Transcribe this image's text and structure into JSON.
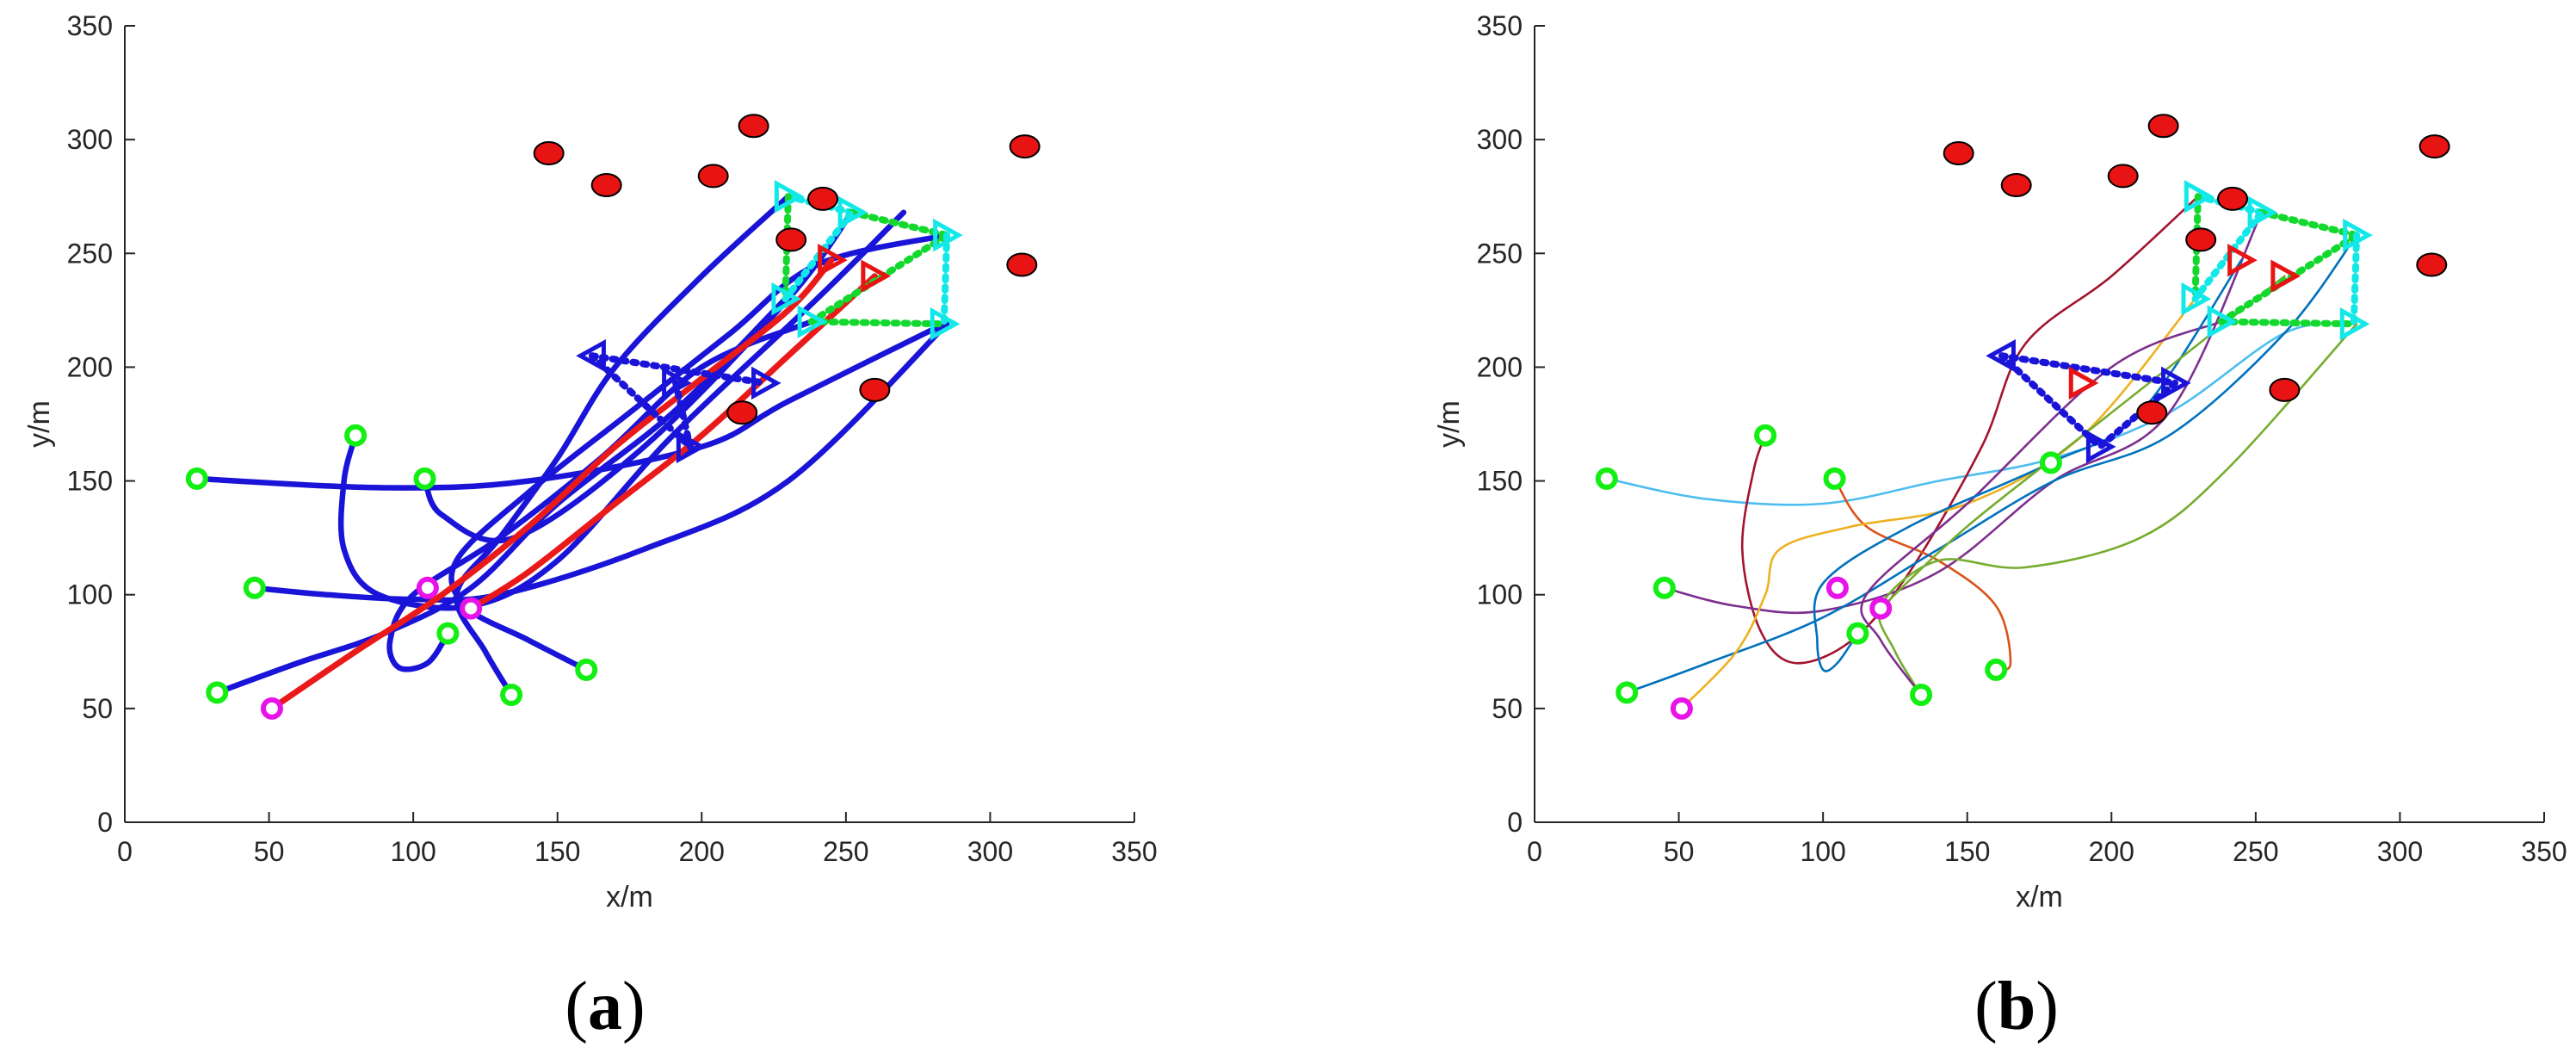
{
  "figure": {
    "panels": [
      {
        "label_open": "(",
        "label_letter": "a",
        "label_close": ")"
      },
      {
        "label_open": "(",
        "label_letter": "b",
        "label_close": ")"
      }
    ]
  },
  "chart_data": [
    {
      "type": "line",
      "panel": "a",
      "xlabel": "x/m",
      "ylabel": "y/m",
      "xlim": [
        0,
        350
      ],
      "ylim": [
        0,
        350
      ],
      "xticks": [
        0,
        50,
        100,
        150,
        200,
        250,
        300,
        350
      ],
      "yticks": [
        0,
        50,
        100,
        150,
        200,
        250,
        300,
        350
      ],
      "grid": false,
      "colors": {
        "uav_paths": "#1a14d8",
        "highlight_paths": "#ea1a1a",
        "threats": "#e81313",
        "start_green": "#13ee13",
        "start_magenta": "#e813e8",
        "formation_cyan": "#13e8e8",
        "formation_dotted": "#13d82e",
        "formation_blue": "#1a14d8"
      },
      "threats": [
        [
          147,
          294
        ],
        [
          167,
          280
        ],
        [
          204,
          284
        ],
        [
          218,
          306
        ],
        [
          242,
          274
        ],
        [
          312,
          297
        ],
        [
          311,
          245
        ],
        [
          231,
          256
        ],
        [
          214,
          180
        ],
        [
          260,
          190
        ]
      ],
      "starts_green": [
        [
          25,
          151
        ],
        [
          80,
          170
        ],
        [
          104,
          151
        ],
        [
          45,
          103
        ],
        [
          32,
          57
        ],
        [
          134,
          56
        ],
        [
          160,
          67
        ],
        [
          112,
          83
        ]
      ],
      "starts_magenta": [
        [
          51,
          50
        ],
        [
          105,
          103
        ],
        [
          120,
          94
        ]
      ],
      "targets": {
        "cyan": [
          [
            230,
            275
          ],
          [
            252,
            268
          ],
          [
            285,
            258
          ],
          [
            229,
            230
          ],
          [
            238,
            220
          ],
          [
            284,
            219
          ]
        ],
        "red": [
          [
            245,
            247
          ],
          [
            260,
            240
          ]
        ],
        "blue": [
          [
            162,
            205
          ],
          [
            191,
            193
          ],
          [
            222,
            193
          ],
          [
            196,
            165
          ]
        ]
      },
      "series": [
        {
          "role": "uav",
          "points": [
            [
              25,
              151
            ],
            [
              90,
              147
            ],
            [
              140,
              150
            ],
            [
              200,
              165
            ],
            [
              230,
              185
            ],
            [
              284,
              219
            ]
          ]
        },
        {
          "role": "uav",
          "points": [
            [
              80,
              170
            ],
            [
              76,
              150
            ],
            [
              76,
              120
            ],
            [
              88,
              100
            ],
            [
              120,
              95
            ],
            [
              150,
              115
            ],
            [
              190,
              170
            ],
            [
              240,
              230
            ],
            [
              270,
              268
            ]
          ]
        },
        {
          "role": "uav",
          "points": [
            [
              104,
              151
            ],
            [
              110,
              135
            ],
            [
              135,
              125
            ],
            [
              180,
              165
            ],
            [
              230,
              230
            ],
            [
              252,
              268
            ]
          ]
        },
        {
          "role": "uav",
          "points": [
            [
              45,
              103
            ],
            [
              70,
              100
            ],
            [
              100,
              98
            ],
            [
              130,
              100
            ],
            [
              180,
              120
            ],
            [
              230,
              150
            ],
            [
              285,
              219
            ]
          ]
        },
        {
          "role": "uav",
          "points": [
            [
              32,
              57
            ],
            [
              60,
              70
            ],
            [
              90,
              83
            ],
            [
              120,
              103
            ],
            [
              150,
              140
            ],
            [
              190,
              180
            ],
            [
              229,
              230
            ]
          ]
        },
        {
          "role": "uav",
          "points": [
            [
              134,
              56
            ],
            [
              125,
              75
            ],
            [
              115,
              100
            ],
            [
              130,
              125
            ],
            [
              150,
              160
            ],
            [
              170,
              200
            ],
            [
              200,
              240
            ],
            [
              230,
              275
            ]
          ]
        },
        {
          "role": "uav",
          "points": [
            [
              160,
              67
            ],
            [
              140,
              80
            ],
            [
              118,
              95
            ],
            [
              115,
              115
            ],
            [
              140,
              145
            ],
            [
              175,
              180
            ],
            [
              210,
              215
            ],
            [
              240,
              245
            ],
            [
              285,
              258
            ]
          ]
        },
        {
          "role": "uav",
          "points": [
            [
              112,
              83
            ],
            [
              105,
              70
            ],
            [
              95,
              68
            ],
            [
              92,
              80
            ],
            [
              100,
              100
            ],
            [
              130,
              125
            ],
            [
              165,
              160
            ],
            [
              200,
              200
            ],
            [
              238,
              220
            ]
          ]
        },
        {
          "role": "highlight",
          "points": [
            [
              51,
              50
            ],
            [
              80,
              75
            ],
            [
              110,
              100
            ],
            [
              140,
              130
            ],
            [
              170,
              165
            ],
            [
              200,
              195
            ],
            [
              230,
              225
            ],
            [
              245,
              247
            ]
          ]
        },
        {
          "role": "highlight",
          "points": [
            [
              120,
              94
            ],
            [
              140,
              110
            ],
            [
              170,
              140
            ],
            [
              200,
              170
            ],
            [
              230,
              205
            ],
            [
              260,
              240
            ]
          ]
        }
      ]
    },
    {
      "type": "line",
      "panel": "b",
      "xlabel": "x/m",
      "ylabel": "y/m",
      "xlim": [
        0,
        350
      ],
      "ylim": [
        0,
        350
      ],
      "xticks": [
        0,
        50,
        100,
        150,
        200,
        250,
        300,
        350
      ],
      "yticks": [
        0,
        50,
        100,
        150,
        200,
        250,
        300,
        350
      ],
      "grid": false,
      "colors": {
        "threats": "#e81313",
        "start_green": "#13ee13",
        "start_magenta": "#e813e8",
        "formation_cyan": "#13e8e8",
        "formation_dotted": "#13d82e",
        "formation_blue": "#1a14d8"
      },
      "threats": [
        [
          147,
          294
        ],
        [
          167,
          280
        ],
        [
          204,
          284
        ],
        [
          218,
          306
        ],
        [
          242,
          274
        ],
        [
          312,
          297
        ],
        [
          311,
          245
        ],
        [
          231,
          256
        ],
        [
          214,
          180
        ],
        [
          260,
          190
        ]
      ],
      "starts_green": [
        [
          25,
          151
        ],
        [
          80,
          170
        ],
        [
          104,
          151
        ],
        [
          45,
          103
        ],
        [
          32,
          57
        ],
        [
          134,
          56
        ],
        [
          160,
          67
        ],
        [
          112,
          83
        ],
        [
          179,
          158
        ]
      ],
      "starts_magenta": [
        [
          51,
          50
        ],
        [
          105,
          103
        ],
        [
          120,
          94
        ]
      ],
      "targets": {
        "cyan": [
          [
            230,
            275
          ],
          [
            252,
            268
          ],
          [
            285,
            258
          ],
          [
            229,
            230
          ],
          [
            238,
            220
          ],
          [
            284,
            219
          ]
        ],
        "red": [
          [
            245,
            247
          ],
          [
            260,
            240
          ],
          [
            190,
            193
          ]
        ],
        "blue": [
          [
            162,
            205
          ],
          [
            222,
            193
          ],
          [
            196,
            165
          ]
        ]
      },
      "series": [
        {
          "color": "#4dbeee",
          "points": [
            [
              25,
              151
            ],
            [
              60,
              142
            ],
            [
              100,
              140
            ],
            [
              140,
              150
            ],
            [
              180,
              160
            ],
            [
              220,
              180
            ],
            [
              260,
              215
            ],
            [
              284,
              219
            ]
          ]
        },
        {
          "color": "#a2142f",
          "points": [
            [
              80,
              170
            ],
            [
              76,
              155
            ],
            [
              72,
              120
            ],
            [
              78,
              85
            ],
            [
              90,
              70
            ],
            [
              110,
              80
            ],
            [
              130,
              110
            ],
            [
              155,
              165
            ],
            [
              170,
              210
            ],
            [
              200,
              240
            ],
            [
              230,
              275
            ]
          ]
        },
        {
          "color": "#d95319",
          "points": [
            [
              104,
              151
            ],
            [
              115,
              130
            ],
            [
              140,
              115
            ],
            [
              160,
              95
            ],
            [
              165,
              70
            ],
            [
              160,
              67
            ]
          ]
        },
        {
          "color": "#7e2f8e",
          "points": [
            [
              45,
              103
            ],
            [
              70,
              95
            ],
            [
              100,
              93
            ],
            [
              140,
              110
            ],
            [
              180,
              150
            ],
            [
              220,
              180
            ],
            [
              252,
              268
            ]
          ]
        },
        {
          "color": "#0072bd",
          "points": [
            [
              32,
              57
            ],
            [
              60,
              70
            ],
            [
              100,
              90
            ],
            [
              140,
              120
            ],
            [
              180,
              150
            ],
            [
              220,
              170
            ],
            [
              260,
              215
            ],
            [
              285,
              258
            ]
          ]
        },
        {
          "color": "#edb120",
          "points": [
            [
              51,
              50
            ],
            [
              70,
              75
            ],
            [
              80,
              100
            ],
            [
              85,
              120
            ],
            [
              110,
              130
            ],
            [
              150,
              140
            ],
            [
              190,
              170
            ],
            [
              229,
              230
            ]
          ]
        },
        {
          "color": "#77ac30",
          "points": [
            [
              134,
              56
            ],
            [
              125,
              75
            ],
            [
              120,
              95
            ],
            [
              140,
              115
            ],
            [
              170,
              112
            ],
            [
              210,
              125
            ],
            [
              240,
              155
            ],
            [
              285,
              219
            ]
          ]
        },
        {
          "color": "#7e2f8e",
          "points": [
            [
              134,
              56
            ],
            [
              120,
              80
            ],
            [
              115,
              100
            ],
            [
              150,
              140
            ],
            [
              200,
              200
            ],
            [
              238,
              220
            ]
          ]
        },
        {
          "color": "#0072bd",
          "points": [
            [
              112,
              83
            ],
            [
              105,
              70
            ],
            [
              100,
              67
            ],
            [
              98,
              80
            ],
            [
              100,
              105
            ],
            [
              130,
              130
            ],
            [
              179,
              158
            ],
            [
              210,
              180
            ],
            [
              245,
              247
            ]
          ]
        },
        {
          "color": "#77ac30",
          "points": [
            [
              120,
              94
            ],
            [
              150,
              130
            ],
            [
              190,
              170
            ],
            [
              230,
              210
            ],
            [
              260,
              240
            ]
          ]
        }
      ]
    }
  ]
}
